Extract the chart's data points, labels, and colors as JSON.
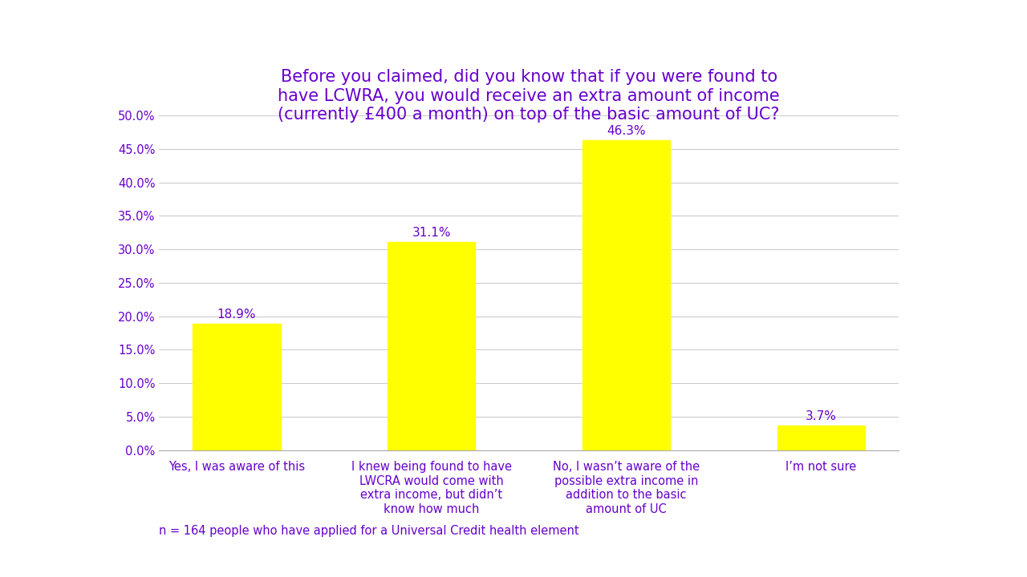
{
  "title": "Before you claimed, did you know that if you were found to\nhave LCWRA, you would receive an extra amount of income\n(currently £400 a month) on top of the basic amount of UC?",
  "categories": [
    "Yes, I was aware of this",
    "I knew being found to have\nLWCRA would come with\nextra income, but didn’t\nknow how much",
    "No, I wasn’t aware of the\npossible extra income in\naddition to the basic\namount of UC",
    "I’m not sure"
  ],
  "values": [
    18.9,
    31.1,
    46.3,
    3.7
  ],
  "bar_color": "#FFFF00",
  "title_color": "#6600CC",
  "label_color": "#6600CC",
  "tick_color": "#6600CC",
  "annotation_color": "#6600CC",
  "footer_text": "n = 164 people who have applied for a Universal Credit health element",
  "footer_color": "#6600CC",
  "ylim": [
    0,
    50
  ],
  "yticks": [
    0,
    5,
    10,
    15,
    20,
    25,
    30,
    35,
    40,
    45,
    50
  ],
  "background_color": "#FFFFFF",
  "grid_color": "#CCCCCC",
  "title_fontsize": 15,
  "tick_fontsize": 10.5,
  "annotation_fontsize": 11,
  "footer_fontsize": 10.5
}
